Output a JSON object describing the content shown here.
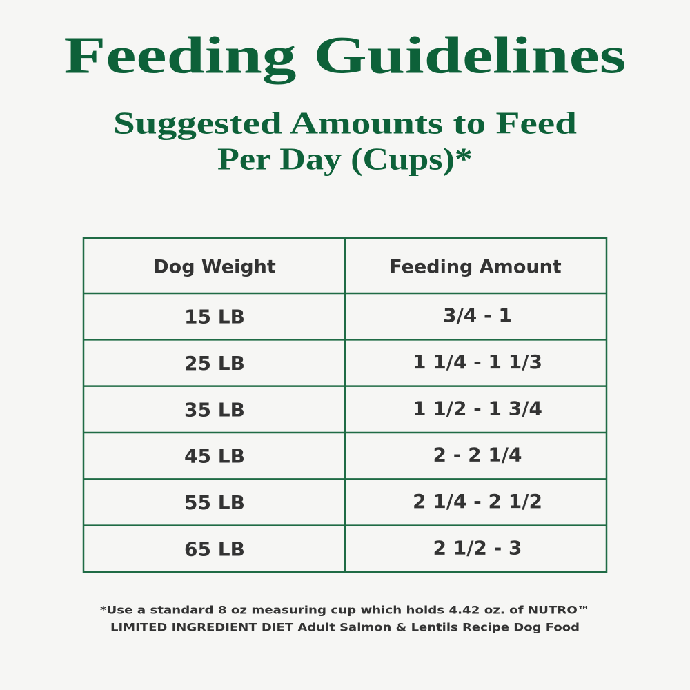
{
  "header": {
    "title": "Feeding Guidelines",
    "subtitle": [
      "Suggested Amounts to Feed",
      "Per Day (Cups)*"
    ]
  },
  "table": {
    "header": [
      "Dog Weight",
      "Feeding Amount"
    ],
    "rows": [
      [
        "15 LB",
        "3/4 - 1"
      ],
      [
        "25 LB",
        "1 1/4 - 1 1/3"
      ],
      [
        "35 LB",
        "1 1/2 - 1 3/4"
      ],
      [
        "45 LB",
        "2 - 2 1/4"
      ],
      [
        "55 LB",
        "2 1/4 - 2 1/2"
      ],
      [
        "65 LB",
        "2 1/2 - 3"
      ]
    ]
  },
  "footnote": [
    "*Use a standard 8 oz measuring cup which holds 4.42 oz. of NUTRO™",
    "LIMITED INGREDIENT DIET Adult Salmon & Lentils Recipe Dog Food"
  ]
}
